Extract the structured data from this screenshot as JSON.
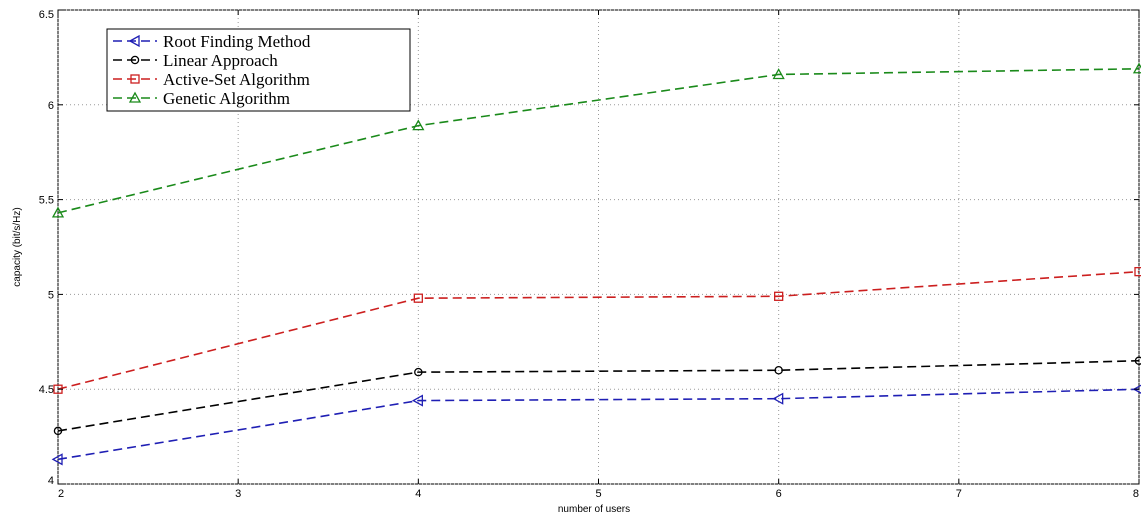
{
  "chart_data": {
    "type": "line",
    "title": "",
    "xlabel": "number of users",
    "ylabel": "capacity (bit/s/Hz)",
    "xlim": [
      2,
      8
    ],
    "ylim": [
      4,
      6.5
    ],
    "x_ticks": [
      "2",
      "3",
      "4",
      "5",
      "6",
      "7",
      "8"
    ],
    "y_ticks": [
      "4",
      "4.5",
      "5",
      "5.5",
      "6",
      "6.5"
    ],
    "grid": true,
    "legend_position": "top-left",
    "x": [
      2,
      4,
      6,
      8
    ],
    "series": [
      {
        "name": "Root Finding Method",
        "color": "#1f1fb4",
        "marker": "triangle-left",
        "values": [
          4.13,
          4.44,
          4.45,
          4.5
        ]
      },
      {
        "name": "Linear Approach",
        "color": "#000000",
        "marker": "circle",
        "values": [
          4.28,
          4.59,
          4.6,
          4.65
        ]
      },
      {
        "name": "Active-Set Algorithm",
        "color": "#cc1f1f",
        "marker": "square",
        "values": [
          4.5,
          4.98,
          4.99,
          5.12
        ]
      },
      {
        "name": "Genetic Algorithm",
        "color": "#1a8a1a",
        "marker": "triangle-up",
        "values": [
          5.43,
          5.89,
          6.16,
          6.19
        ]
      }
    ]
  }
}
